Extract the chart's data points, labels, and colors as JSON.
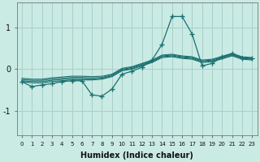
{
  "xlabel": "Humidex (Indice chaleur)",
  "bg_color": "#caeae4",
  "grid_color": "#aacfca",
  "line_color": "#1a7070",
  "xlim": [
    -0.5,
    23.5
  ],
  "ylim": [
    -1.6,
    1.6
  ],
  "yticks": [
    -1,
    0,
    1
  ],
  "xtick_labels": [
    "0",
    "1",
    "2",
    "3",
    "4",
    "5",
    "6",
    "7",
    "8",
    "9",
    "10",
    "11",
    "12",
    "13",
    "14",
    "15",
    "16",
    "17",
    "18",
    "19",
    "20",
    "21",
    "22",
    "23"
  ],
  "main_line_x": [
    0,
    1,
    2,
    3,
    4,
    5,
    6,
    7,
    8,
    9,
    10,
    11,
    12,
    13,
    14,
    15,
    16,
    17,
    18,
    19,
    20,
    21,
    22,
    23
  ],
  "main_line_y": [
    -0.3,
    -0.42,
    -0.38,
    -0.35,
    -0.3,
    -0.28,
    -0.28,
    -0.62,
    -0.65,
    -0.48,
    -0.12,
    -0.05,
    0.05,
    0.22,
    0.6,
    1.27,
    1.27,
    0.85,
    0.08,
    0.14,
    0.3,
    0.38,
    0.26,
    0.26
  ],
  "bundle_lines": [
    [
      -0.3,
      -0.33,
      -0.33,
      -0.3,
      -0.28,
      -0.26,
      -0.26,
      -0.26,
      -0.24,
      -0.18,
      -0.04,
      0.0,
      0.08,
      0.16,
      0.28,
      0.3,
      0.26,
      0.24,
      0.16,
      0.18,
      0.25,
      0.32,
      0.24,
      0.22
    ],
    [
      -0.28,
      -0.3,
      -0.3,
      -0.27,
      -0.25,
      -0.23,
      -0.23,
      -0.24,
      -0.22,
      -0.16,
      -0.02,
      0.02,
      0.1,
      0.18,
      0.3,
      0.32,
      0.28,
      0.26,
      0.18,
      0.2,
      0.27,
      0.34,
      0.26,
      0.24
    ],
    [
      -0.25,
      -0.27,
      -0.27,
      -0.24,
      -0.22,
      -0.2,
      -0.2,
      -0.21,
      -0.2,
      -0.14,
      0.0,
      0.04,
      0.12,
      0.2,
      0.32,
      0.34,
      0.3,
      0.28,
      0.2,
      0.22,
      0.29,
      0.36,
      0.28,
      0.26
    ],
    [
      -0.22,
      -0.24,
      -0.24,
      -0.21,
      -0.19,
      -0.17,
      -0.17,
      -0.18,
      -0.17,
      -0.12,
      0.02,
      0.06,
      0.14,
      0.22,
      0.34,
      0.36,
      0.32,
      0.3,
      0.22,
      0.24,
      0.31,
      0.38,
      0.3,
      0.28
    ]
  ]
}
